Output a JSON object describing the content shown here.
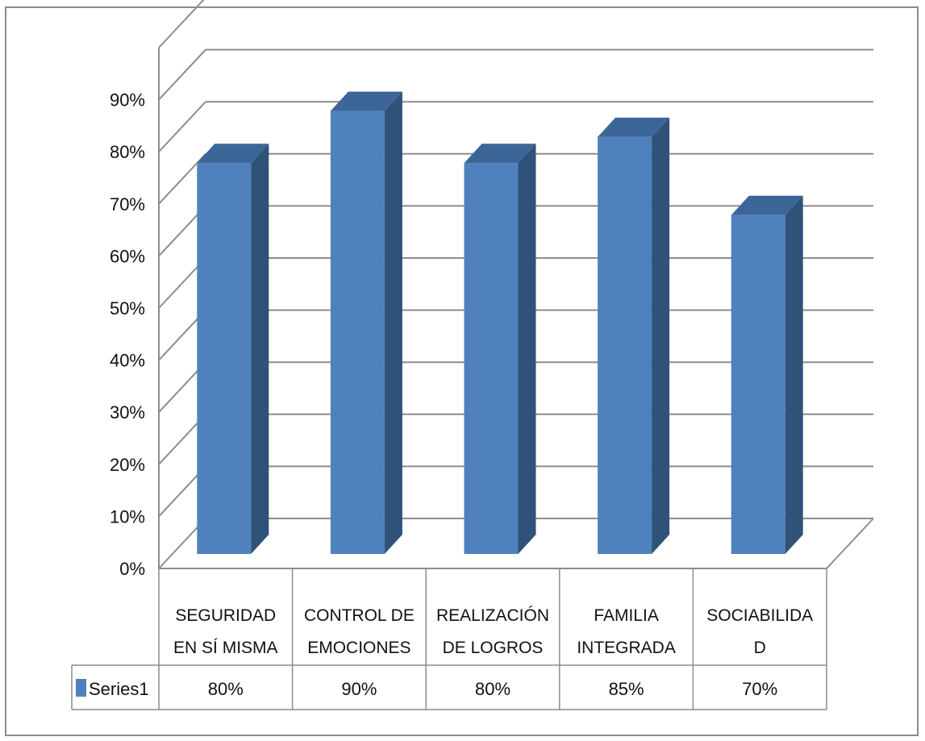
{
  "chart_data": {
    "type": "bar",
    "categories": [
      [
        "SEGURIDAD",
        "EN SÍ MISMA"
      ],
      [
        "CONTROL DE",
        "EMOCIONES"
      ],
      [
        "REALIZACIÓN",
        "DE LOGROS"
      ],
      [
        "FAMILIA",
        "INTEGRADA"
      ],
      [
        "SOCIABILIDA",
        "D"
      ]
    ],
    "series": [
      {
        "name": "Series1",
        "values": [
          0.8,
          0.9,
          0.8,
          0.85,
          0.7
        ],
        "value_labels": [
          "80%",
          "90%",
          "80%",
          "85%",
          "70%"
        ]
      }
    ],
    "ylim": [
      0,
      0.9
    ],
    "yticks": [
      "0%",
      "10%",
      "20%",
      "30%",
      "40%",
      "50%",
      "60%",
      "70%",
      "80%",
      "90%"
    ],
    "grid": true,
    "style": "3d-column",
    "data_table": true,
    "colors": {
      "front": "#4f81bd",
      "side": "#2f5279",
      "top": "#3c6698",
      "grid": "#8c8c8c"
    }
  }
}
